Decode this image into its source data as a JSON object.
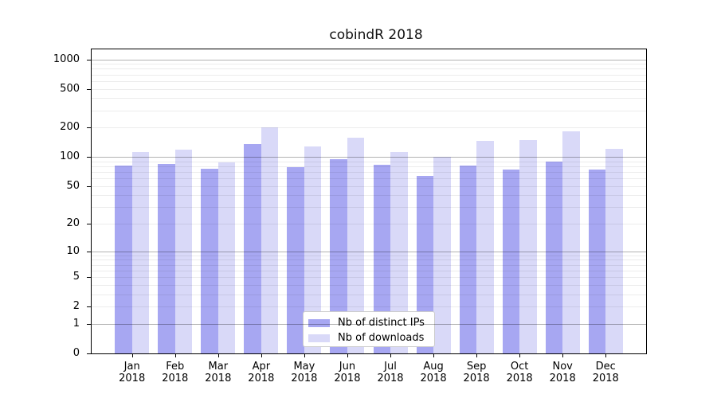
{
  "title": "cobindR 2018",
  "chart_data": {
    "type": "bar",
    "title": "cobindR 2018",
    "categories": [
      "Jan 2018",
      "Feb 2018",
      "Mar 2018",
      "Apr 2018",
      "May 2018",
      "Jun 2018",
      "Jul 2018",
      "Aug 2018",
      "Sep 2018",
      "Oct 2018",
      "Nov 2018",
      "Dec 2018"
    ],
    "series": [
      {
        "name": "Nb of distinct IPs",
        "color": "#a7a7f2",
        "values": [
          81,
          85,
          76,
          136,
          78,
          94,
          83,
          64,
          82,
          74,
          89,
          74
        ]
      },
      {
        "name": "Nb of downloads",
        "color": "#d9d9f8",
        "values": [
          113,
          118,
          88,
          200,
          129,
          157,
          113,
          100,
          146,
          150,
          184,
          122
        ]
      }
    ],
    "xlabel": "",
    "ylabel": "",
    "yscale": "log1p",
    "ylim": [
      0,
      1000
    ],
    "yticks": [
      0,
      1,
      2,
      5,
      10,
      20,
      50,
      100,
      200,
      500,
      1000
    ],
    "major_gridlines": [
      1,
      10,
      100,
      1000
    ],
    "minor_gridlines": [
      2,
      3,
      4,
      5,
      6,
      7,
      8,
      9,
      20,
      30,
      40,
      50,
      60,
      70,
      80,
      90,
      200,
      300,
      400,
      500,
      600,
      700,
      800,
      900
    ],
    "grid": "horizontal",
    "legend_position": "inside-bottom-center"
  },
  "legend": {
    "items": [
      {
        "label": "Nb of distinct IPs",
        "color": "#a7a7f2"
      },
      {
        "label": "Nb of downloads",
        "color": "#d9d9f8"
      }
    ]
  },
  "colors": {
    "background": "#ffffff",
    "axis": "#000000",
    "major_grid": "#b2b2b2",
    "minor_grid": "#ececec",
    "bar_distinct_ips": "#a7a7f2",
    "bar_downloads": "#d9d9f8"
  }
}
